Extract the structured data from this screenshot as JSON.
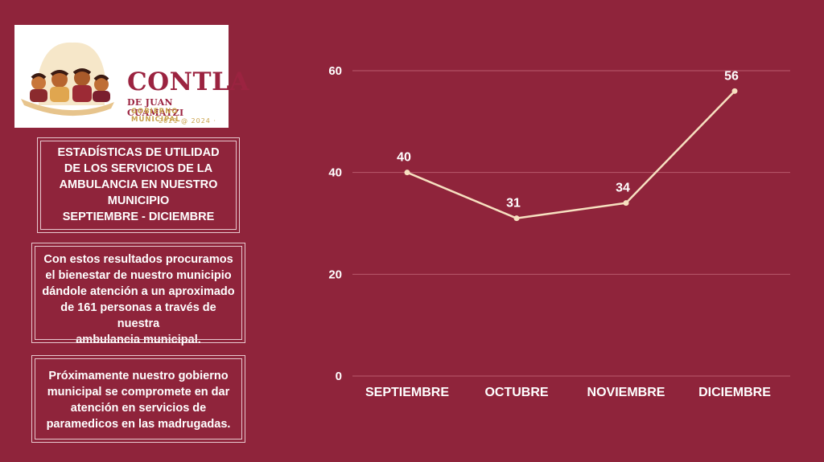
{
  "logo": {
    "title": "CONTLA",
    "subtitle": "DE JUAN CUAMATZI",
    "subtitle2": "GOBIERNO MUNICIPAL",
    "years": "· 2021 @ 2024 ·"
  },
  "panels": {
    "title_lines": [
      "ESTADÍSTICAS DE UTILIDAD",
      "DE LOS SERVICIOS DE LA",
      "AMBULANCIA EN NUESTRO",
      "MUNICIPIO",
      "SEPTIEMBRE - DICIEMBRE"
    ],
    "results_lines": [
      "Con estos resultados procuramos",
      "el bienestar de nuestro municipio",
      "dándole atención a un aproximado",
      "de 161 personas a través de nuestra",
      "ambulancia municipal."
    ],
    "future_lines": [
      "Próximamente nuestro gobierno",
      "municipal se compromete en dar",
      "atención en servicios de",
      "paramedicos en las madrugadas."
    ]
  },
  "chart_data": {
    "type": "line",
    "categories": [
      "SEPTIEMBRE",
      "OCTUBRE",
      "NOVIEMBRE",
      "DICIEMBRE"
    ],
    "values": [
      40,
      31,
      34,
      56
    ],
    "data_labels": [
      "40",
      "31",
      "34",
      "56"
    ],
    "yticks": [
      "0",
      "20",
      "40",
      "60"
    ],
    "ylim": [
      0,
      60
    ],
    "grid": true,
    "line_color": "#f7e0c0",
    "grid_color": "#b85a6d",
    "title": "",
    "xlabel": "",
    "ylabel": ""
  }
}
